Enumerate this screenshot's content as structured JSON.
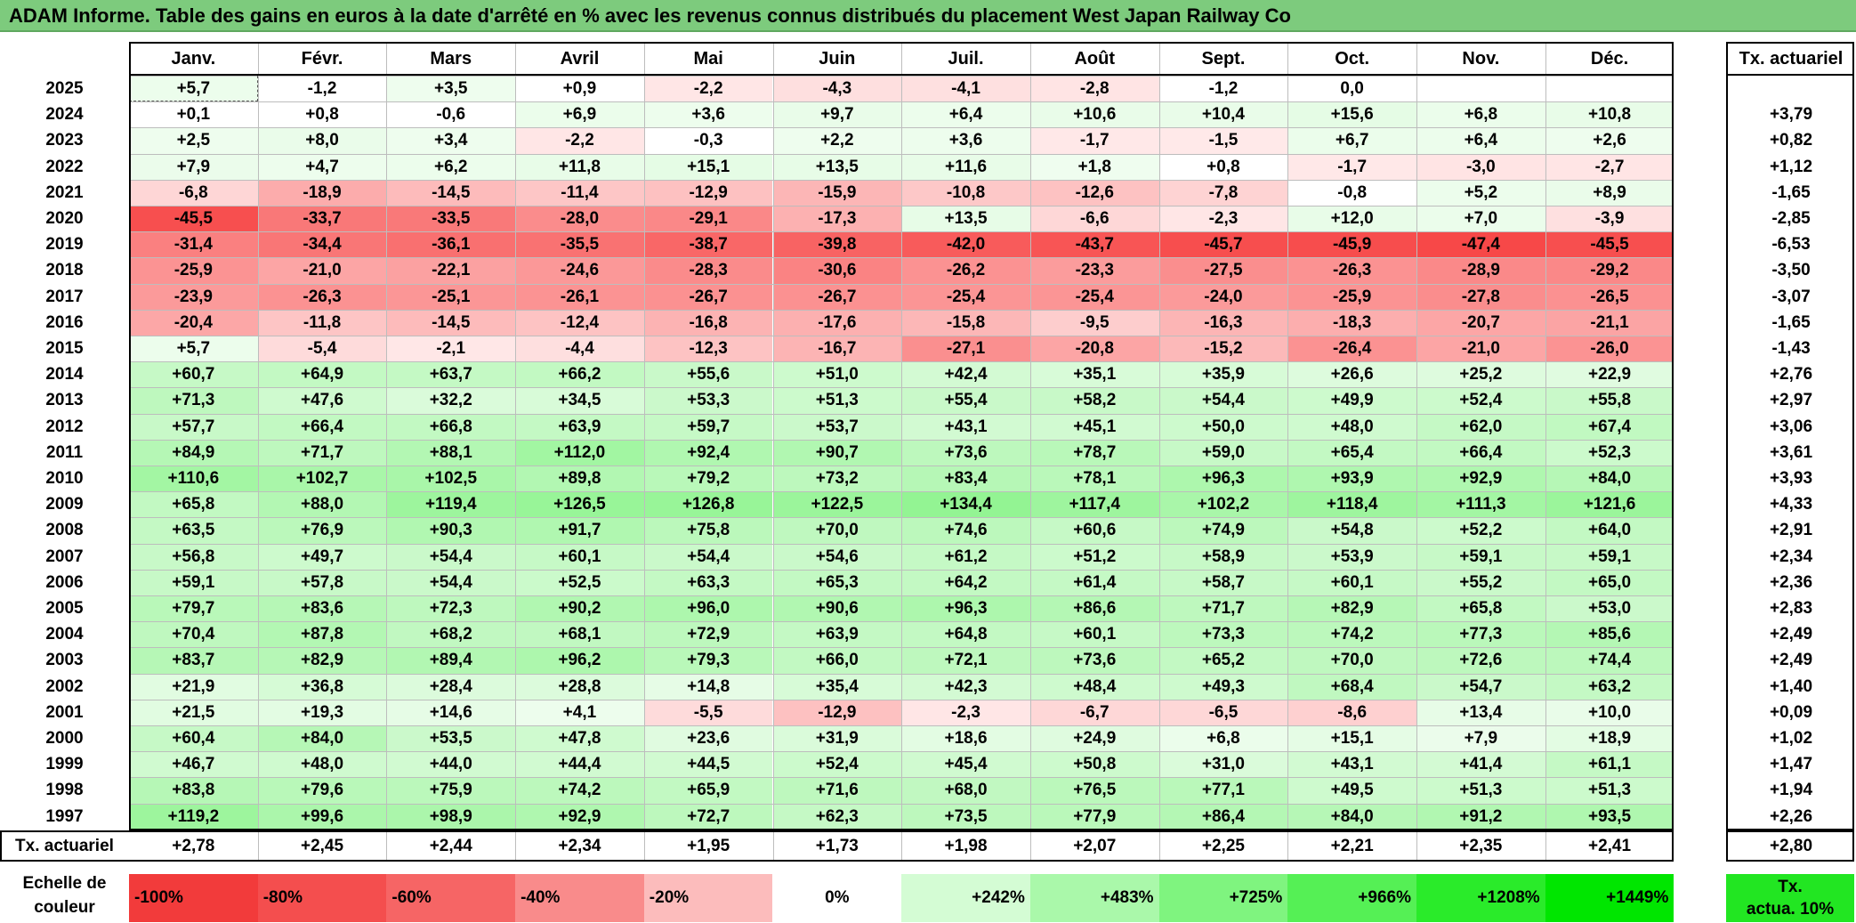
{
  "title": "ADAM Informe. Table des gains en euros à la date d'arrêté en % avec les revenus connus distribués du placement West Japan Railway Co",
  "months": [
    "Janv.",
    "Févr.",
    "Mars",
    "Avril",
    "Mai",
    "Juin",
    "Juil.",
    "Août",
    "Sept.",
    "Oct.",
    "Nov.",
    "Déc."
  ],
  "rate_header": "Tx. actuariel",
  "rows": [
    {
      "year": "2025",
      "values": [
        "+5,7",
        "-1,2",
        "+3,5",
        "+0,9",
        "-2,2",
        "-4,3",
        "-4,1",
        "-2,8",
        "-1,2",
        "0,0",
        "",
        ""
      ],
      "rate": ""
    },
    {
      "year": "2024",
      "values": [
        "+0,1",
        "+0,8",
        "-0,6",
        "+6,9",
        "+3,6",
        "+9,7",
        "+6,4",
        "+10,6",
        "+10,4",
        "+15,6",
        "+6,8",
        "+10,8"
      ],
      "rate": "+3,79"
    },
    {
      "year": "2023",
      "values": [
        "+2,5",
        "+8,0",
        "+3,4",
        "-2,2",
        "-0,3",
        "+2,2",
        "+3,6",
        "-1,7",
        "-1,5",
        "+6,7",
        "+6,4",
        "+2,6"
      ],
      "rate": "+0,82"
    },
    {
      "year": "2022",
      "values": [
        "+7,9",
        "+4,7",
        "+6,2",
        "+11,8",
        "+15,1",
        "+13,5",
        "+11,6",
        "+1,8",
        "+0,8",
        "-1,7",
        "-3,0",
        "-2,7"
      ],
      "rate": "+1,12"
    },
    {
      "year": "2021",
      "values": [
        "-6,8",
        "-18,9",
        "-14,5",
        "-11,4",
        "-12,9",
        "-15,9",
        "-10,8",
        "-12,6",
        "-7,8",
        "-0,8",
        "+5,2",
        "+8,9"
      ],
      "rate": "-1,65"
    },
    {
      "year": "2020",
      "values": [
        "-45,5",
        "-33,7",
        "-33,5",
        "-28,0",
        "-29,1",
        "-17,3",
        "+13,5",
        "-6,6",
        "-2,3",
        "+12,0",
        "+7,0",
        "-3,9"
      ],
      "rate": "-2,85"
    },
    {
      "year": "2019",
      "values": [
        "-31,4",
        "-34,4",
        "-36,1",
        "-35,5",
        "-38,7",
        "-39,8",
        "-42,0",
        "-43,7",
        "-45,7",
        "-45,9",
        "-47,4",
        "-45,5"
      ],
      "rate": "-6,53"
    },
    {
      "year": "2018",
      "values": [
        "-25,9",
        "-21,0",
        "-22,1",
        "-24,6",
        "-28,3",
        "-30,6",
        "-26,2",
        "-23,3",
        "-27,5",
        "-26,3",
        "-28,9",
        "-29,2"
      ],
      "rate": "-3,50"
    },
    {
      "year": "2017",
      "values": [
        "-23,9",
        "-26,3",
        "-25,1",
        "-26,1",
        "-26,7",
        "-26,7",
        "-25,4",
        "-25,4",
        "-24,0",
        "-25,9",
        "-27,8",
        "-26,5"
      ],
      "rate": "-3,07"
    },
    {
      "year": "2016",
      "values": [
        "-20,4",
        "-11,8",
        "-14,5",
        "-12,4",
        "-16,8",
        "-17,6",
        "-15,8",
        "-9,5",
        "-16,3",
        "-18,3",
        "-20,7",
        "-21,1"
      ],
      "rate": "-1,65"
    },
    {
      "year": "2015",
      "values": [
        "+5,7",
        "-5,4",
        "-2,1",
        "-4,4",
        "-12,3",
        "-16,7",
        "-27,1",
        "-20,8",
        "-15,2",
        "-26,4",
        "-21,0",
        "-26,0"
      ],
      "rate": "-1,43"
    },
    {
      "year": "2014",
      "values": [
        "+60,7",
        "+64,9",
        "+63,7",
        "+66,2",
        "+55,6",
        "+51,0",
        "+42,4",
        "+35,1",
        "+35,9",
        "+26,6",
        "+25,2",
        "+22,9"
      ],
      "rate": "+2,76"
    },
    {
      "year": "2013",
      "values": [
        "+71,3",
        "+47,6",
        "+32,2",
        "+34,5",
        "+53,3",
        "+51,3",
        "+55,4",
        "+58,2",
        "+54,4",
        "+49,9",
        "+52,4",
        "+55,8"
      ],
      "rate": "+2,97"
    },
    {
      "year": "2012",
      "values": [
        "+57,7",
        "+66,4",
        "+66,8",
        "+63,9",
        "+59,7",
        "+53,7",
        "+43,1",
        "+45,1",
        "+50,0",
        "+48,0",
        "+62,0",
        "+67,4"
      ],
      "rate": "+3,06"
    },
    {
      "year": "2011",
      "values": [
        "+84,9",
        "+71,7",
        "+88,1",
        "+112,0",
        "+92,4",
        "+90,7",
        "+73,6",
        "+78,7",
        "+59,0",
        "+65,4",
        "+66,4",
        "+52,3"
      ],
      "rate": "+3,61"
    },
    {
      "year": "2010",
      "values": [
        "+110,6",
        "+102,7",
        "+102,5",
        "+89,8",
        "+79,2",
        "+73,2",
        "+83,4",
        "+78,1",
        "+96,3",
        "+93,9",
        "+92,9",
        "+84,0"
      ],
      "rate": "+3,93"
    },
    {
      "year": "2009",
      "values": [
        "+65,8",
        "+88,0",
        "+119,4",
        "+126,5",
        "+126,8",
        "+122,5",
        "+134,4",
        "+117,4",
        "+102,2",
        "+118,4",
        "+111,3",
        "+121,6"
      ],
      "rate": "+4,33"
    },
    {
      "year": "2008",
      "values": [
        "+63,5",
        "+76,9",
        "+90,3",
        "+91,7",
        "+75,8",
        "+70,0",
        "+74,6",
        "+60,6",
        "+74,9",
        "+54,8",
        "+52,2",
        "+64,0"
      ],
      "rate": "+2,91"
    },
    {
      "year": "2007",
      "values": [
        "+56,8",
        "+49,7",
        "+54,4",
        "+60,1",
        "+54,4",
        "+54,6",
        "+61,2",
        "+51,2",
        "+58,9",
        "+53,9",
        "+59,1",
        "+59,1"
      ],
      "rate": "+2,34"
    },
    {
      "year": "2006",
      "values": [
        "+59,1",
        "+57,8",
        "+54,4",
        "+52,5",
        "+63,3",
        "+65,3",
        "+64,2",
        "+61,4",
        "+58,7",
        "+60,1",
        "+55,2",
        "+65,0"
      ],
      "rate": "+2,36"
    },
    {
      "year": "2005",
      "values": [
        "+79,7",
        "+83,6",
        "+72,3",
        "+90,2",
        "+96,0",
        "+90,6",
        "+96,3",
        "+86,6",
        "+71,7",
        "+82,9",
        "+65,8",
        "+53,0"
      ],
      "rate": "+2,83"
    },
    {
      "year": "2004",
      "values": [
        "+70,4",
        "+87,8",
        "+68,2",
        "+68,1",
        "+72,9",
        "+63,9",
        "+64,8",
        "+60,1",
        "+73,3",
        "+74,2",
        "+77,3",
        "+85,6"
      ],
      "rate": "+2,49"
    },
    {
      "year": "2003",
      "values": [
        "+83,7",
        "+82,9",
        "+89,4",
        "+96,2",
        "+79,3",
        "+66,0",
        "+72,1",
        "+73,6",
        "+65,2",
        "+70,0",
        "+72,6",
        "+74,4"
      ],
      "rate": "+2,49"
    },
    {
      "year": "2002",
      "values": [
        "+21,9",
        "+36,8",
        "+28,4",
        "+28,8",
        "+14,8",
        "+35,4",
        "+42,3",
        "+48,4",
        "+49,3",
        "+68,4",
        "+54,7",
        "+63,2"
      ],
      "rate": "+1,40"
    },
    {
      "year": "2001",
      "values": [
        "+21,5",
        "+19,3",
        "+14,6",
        "+4,1",
        "-5,5",
        "-12,9",
        "-2,3",
        "-6,7",
        "-6,5",
        "-8,6",
        "+13,4",
        "+10,0"
      ],
      "rate": "+0,09"
    },
    {
      "year": "2000",
      "values": [
        "+60,4",
        "+84,0",
        "+53,5",
        "+47,8",
        "+23,6",
        "+31,9",
        "+18,6",
        "+24,9",
        "+6,8",
        "+15,1",
        "+7,9",
        "+18,9"
      ],
      "rate": "+1,02"
    },
    {
      "year": "1999",
      "values": [
        "+46,7",
        "+48,0",
        "+44,0",
        "+44,4",
        "+44,5",
        "+52,4",
        "+45,4",
        "+50,8",
        "+31,0",
        "+43,1",
        "+41,4",
        "+61,1"
      ],
      "rate": "+1,47"
    },
    {
      "year": "1998",
      "values": [
        "+83,8",
        "+79,6",
        "+75,9",
        "+74,2",
        "+65,9",
        "+71,6",
        "+68,0",
        "+76,5",
        "+77,1",
        "+49,5",
        "+51,3",
        "+51,3"
      ],
      "rate": "+1,94"
    },
    {
      "year": "1997",
      "values": [
        "+119,2",
        "+99,6",
        "+98,9",
        "+92,9",
        "+72,7",
        "+62,3",
        "+73,5",
        "+77,9",
        "+86,4",
        "+84,0",
        "+91,2",
        "+93,5"
      ],
      "rate": "+2,26"
    }
  ],
  "footer": {
    "label": "Tx. actuariel",
    "values": [
      "+2,78",
      "+2,45",
      "+2,44",
      "+2,34",
      "+1,95",
      "+1,73",
      "+1,98",
      "+2,07",
      "+2,25",
      "+2,21",
      "+2,35",
      "+2,41"
    ],
    "rate": "+2,80"
  },
  "scale": {
    "label_line1": "Echelle de",
    "label_line2": "couleur",
    "steps": [
      {
        "label": "-100%",
        "color": "#f23b3b",
        "align": "left"
      },
      {
        "label": "-80%",
        "color": "#f44e4e",
        "align": "left"
      },
      {
        "label": "-60%",
        "color": "#f66565",
        "align": "left"
      },
      {
        "label": "-40%",
        "color": "#f98b8b",
        "align": "left"
      },
      {
        "label": "-20%",
        "color": "#fcbcbc",
        "align": "left"
      },
      {
        "label": "0%",
        "color": "#ffffff",
        "align": "center"
      },
      {
        "label": "+242%",
        "color": "#d4fcd4",
        "align": "right"
      },
      {
        "label": "+483%",
        "color": "#aaf8aa",
        "align": "right"
      },
      {
        "label": "+725%",
        "color": "#7ff47f",
        "align": "right"
      },
      {
        "label": "+966%",
        "color": "#55f055",
        "align": "right"
      },
      {
        "label": "+1208%",
        "color": "#2aeb2a",
        "align": "right"
      },
      {
        "label": "+1449%",
        "color": "#00e600",
        "align": "right"
      }
    ],
    "rate_line1": "Tx.",
    "rate_line2": "actua. 10%",
    "rate_color": "#22e622"
  }
}
